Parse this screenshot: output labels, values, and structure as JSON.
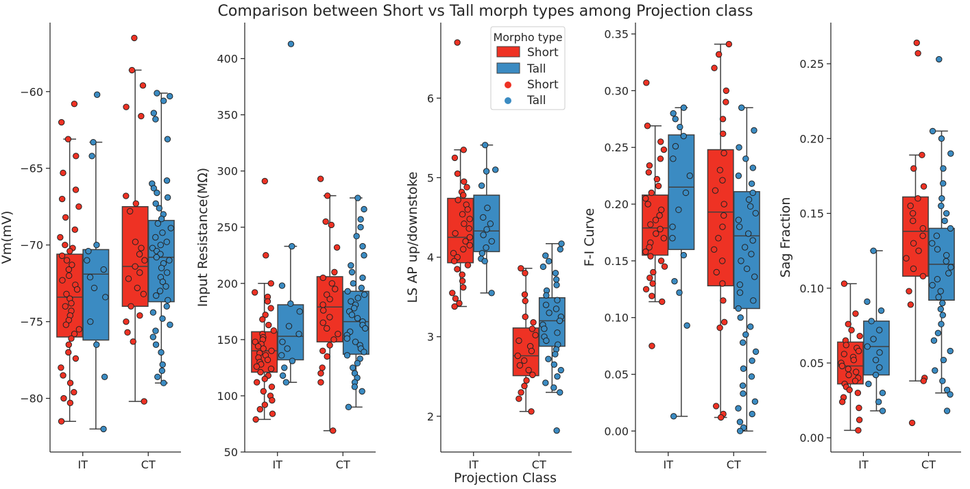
{
  "title": "Comparison between Short vs Tall morph types among Projection class",
  "shared_xlabel": "Projection Class",
  "colors": {
    "Short": "#ee3224",
    "Tall": "#3b8bc2",
    "box_edge": "#3f3f3f",
    "point_edge": "#222222"
  },
  "legend": {
    "title": "Morpho type",
    "box_entries": [
      "Short",
      "Tall"
    ],
    "point_entries": [
      "Short",
      "Tall"
    ],
    "placement": "top-right of third panel"
  },
  "chart_data": [
    {
      "type": "boxplot",
      "ylabel": "Vm(mV)",
      "categories": [
        "IT",
        "CT"
      ],
      "hue": [
        "Short",
        "Tall"
      ],
      "ylim": [
        -83.5,
        -55.5
      ],
      "yticks": [
        -80,
        -75,
        -70,
        -65,
        -60
      ],
      "ytick_labels": [
        "−80",
        "−75",
        "−70",
        "−65",
        "−60"
      ],
      "boxes": [
        {
          "category": "IT",
          "hue": "Short",
          "whislo": -81.5,
          "q1": -76.0,
          "med": -73.4,
          "q3": -70.6,
          "whishi": -63.1
        },
        {
          "category": "IT",
          "hue": "Tall",
          "whislo": -82.0,
          "q1": -76.2,
          "med": -71.9,
          "q3": -70.3,
          "whishi": -63.3
        },
        {
          "category": "CT",
          "hue": "Short",
          "whislo": -80.2,
          "q1": -74.0,
          "med": -71.4,
          "q3": -67.5,
          "whishi": -58.6
        },
        {
          "category": "CT",
          "hue": "Tall",
          "whislo": -79.0,
          "q1": -73.7,
          "med": -70.8,
          "q3": -68.4,
          "whishi": -60.1
        }
      ],
      "points": [
        {
          "category": "IT",
          "hue": "Short",
          "values": [
            -60.8,
            -62.0,
            -63.1,
            -64.2,
            -65.3,
            -66.4,
            -67.0,
            -67.5,
            -68.2,
            -69.0,
            -69.5,
            -70.0,
            -70.2,
            -70.4,
            -70.7,
            -71.0,
            -71.3,
            -71.6,
            -72.0,
            -72.3,
            -72.6,
            -72.9,
            -73.2,
            -73.5,
            -73.8,
            -74.0,
            -74.3,
            -74.6,
            -74.9,
            -75.2,
            -75.5,
            -75.8,
            -76.1,
            -76.5,
            -77.0,
            -77.4,
            -78.0,
            -78.5,
            -79.0,
            -79.6,
            -80.0,
            -80.3,
            -81.5
          ]
        },
        {
          "category": "IT",
          "hue": "Tall",
          "values": [
            -60.2,
            -63.3,
            -64.2,
            -70.0,
            -70.4,
            -71.0,
            -71.6,
            -72.1,
            -72.8,
            -73.4,
            -75.0,
            -76.5,
            -78.6,
            -82.0
          ]
        },
        {
          "category": "CT",
          "hue": "Short",
          "values": [
            -56.5,
            -58.6,
            -59.6,
            -61.0,
            -61.6,
            -66.8,
            -67.3,
            -67.8,
            -69.8,
            -70.2,
            -70.6,
            -71.0,
            -71.4,
            -71.8,
            -72.2,
            -72.8,
            -73.2,
            -74.0,
            -74.6,
            -75.0,
            -75.7,
            -76.3,
            -80.2
          ]
        },
        {
          "category": "CT",
          "hue": "Tall",
          "values": [
            -60.1,
            -60.3,
            -60.6,
            -61.4,
            -61.8,
            -63.1,
            -65.8,
            -66.0,
            -66.3,
            -66.6,
            -66.9,
            -67.3,
            -67.6,
            -68.0,
            -68.3,
            -68.6,
            -68.9,
            -69.2,
            -69.5,
            -69.8,
            -70.0,
            -70.2,
            -70.4,
            -70.6,
            -70.8,
            -71.0,
            -71.2,
            -71.5,
            -71.8,
            -72.1,
            -72.4,
            -72.7,
            -73.0,
            -73.3,
            -73.6,
            -74.0,
            -74.4,
            -74.8,
            -75.2,
            -75.6,
            -76.0,
            -76.5,
            -77.0,
            -77.8,
            -78.2,
            -78.6,
            -79.0
          ]
        }
      ]
    },
    {
      "type": "boxplot",
      "ylabel": "Input Resistance(MΩ)",
      "categories": [
        "IT",
        "CT"
      ],
      "hue": [
        "Short",
        "Tall"
      ],
      "ylim": [
        50,
        432
      ],
      "yticks": [
        50,
        100,
        150,
        200,
        250,
        300,
        350,
        400
      ],
      "ytick_labels": [
        "50",
        "100",
        "150",
        "200",
        "250",
        "300",
        "350",
        "400"
      ],
      "boxes": [
        {
          "category": "IT",
          "hue": "Short",
          "whislo": 79,
          "q1": 121,
          "med": 140,
          "q3": 157,
          "whishi": 200
        },
        {
          "category": "IT",
          "hue": "Tall",
          "whislo": 112,
          "q1": 132,
          "med": 153,
          "q3": 181,
          "whishi": 233
        },
        {
          "category": "CT",
          "hue": "Short",
          "whislo": 69,
          "q1": 148,
          "med": 179,
          "q3": 206,
          "whishi": 278
        },
        {
          "category": "CT",
          "hue": "Tall",
          "whislo": 90,
          "q1": 137,
          "med": 166,
          "q3": 193,
          "whishi": 276
        }
      ],
      "points": [
        {
          "category": "IT",
          "hue": "Short",
          "values": [
            291,
            225,
            200,
            192,
            188,
            184,
            178,
            172,
            168,
            163,
            158,
            155,
            152,
            150,
            148,
            146,
            144,
            142,
            140,
            138,
            136,
            134,
            132,
            130,
            128,
            126,
            124,
            121,
            118,
            115,
            112,
            108,
            104,
            100,
            96,
            92,
            88,
            84,
            79
          ]
        },
        {
          "category": "IT",
          "hue": "Tall",
          "values": [
            413,
            233,
            198,
            182,
            175,
            162,
            155,
            148,
            142,
            136,
            131,
            125,
            118,
            112
          ]
        },
        {
          "category": "CT",
          "hue": "Short",
          "values": [
            293,
            278,
            255,
            252,
            232,
            210,
            205,
            200,
            195,
            190,
            186,
            181,
            176,
            170,
            165,
            160,
            155,
            150,
            145,
            140,
            135,
            125,
            120,
            112,
            69
          ]
        },
        {
          "category": "CT",
          "hue": "Tall",
          "values": [
            276,
            266,
            257,
            250,
            242,
            233,
            225,
            216,
            210,
            205,
            200,
            196,
            193,
            190,
            187,
            184,
            181,
            178,
            175,
            172,
            169,
            166,
            163,
            160,
            157,
            154,
            151,
            148,
            145,
            142,
            139,
            136,
            133,
            129,
            125,
            120,
            116,
            112,
            108,
            104,
            90
          ]
        }
      ]
    },
    {
      "type": "boxplot",
      "ylabel": "LS AP up/downstoke",
      "categories": [
        "IT",
        "CT"
      ],
      "hue": [
        "Short",
        "Tall"
      ],
      "ylim": [
        1.55,
        6.95
      ],
      "yticks": [
        2,
        3,
        4,
        5,
        6
      ],
      "ytick_labels": [
        "2",
        "3",
        "4",
        "5",
        "6"
      ],
      "boxes": [
        {
          "category": "IT",
          "hue": "Short",
          "whislo": 3.38,
          "q1": 3.93,
          "med": 4.25,
          "q3": 4.74,
          "whishi": 5.35
        },
        {
          "category": "IT",
          "hue": "Tall",
          "whislo": 3.55,
          "q1": 4.07,
          "med": 4.33,
          "q3": 4.78,
          "whishi": 5.41
        },
        {
          "category": "CT",
          "hue": "Short",
          "whislo": 2.06,
          "q1": 2.51,
          "med": 2.76,
          "q3": 3.11,
          "whishi": 3.86
        },
        {
          "category": "CT",
          "hue": "Tall",
          "whislo": 2.3,
          "q1": 2.88,
          "med": 3.2,
          "q3": 3.49,
          "whishi": 4.17
        }
      ],
      "points": [
        {
          "category": "IT",
          "hue": "Short",
          "values": [
            6.7,
            5.35,
            5.25,
            5.05,
            4.95,
            4.88,
            4.82,
            4.78,
            4.72,
            4.66,
            4.6,
            4.54,
            4.48,
            4.42,
            4.36,
            4.3,
            4.25,
            4.2,
            4.15,
            4.1,
            4.05,
            4.0,
            3.95,
            3.9,
            3.85,
            3.78,
            3.7,
            3.62,
            3.55,
            3.48,
            3.42,
            3.38
          ]
        },
        {
          "category": "IT",
          "hue": "Tall",
          "values": [
            5.41,
            5.1,
            5.08,
            4.9,
            4.62,
            4.5,
            4.42,
            4.35,
            4.28,
            4.2,
            4.12,
            4.05,
            3.98,
            3.95,
            3.55
          ]
        },
        {
          "category": "CT",
          "hue": "Short",
          "values": [
            3.86,
            3.8,
            3.53,
            3.45,
            3.25,
            3.18,
            3.1,
            3.02,
            2.95,
            2.88,
            2.82,
            2.76,
            2.7,
            2.64,
            2.58,
            2.52,
            2.45,
            2.38,
            2.3,
            2.22,
            2.06
          ]
        },
        {
          "category": "CT",
          "hue": "Tall",
          "values": [
            4.17,
            4.1,
            4.02,
            3.95,
            3.88,
            3.8,
            3.72,
            3.65,
            3.58,
            3.52,
            3.46,
            3.4,
            3.35,
            3.3,
            3.25,
            3.2,
            3.15,
            3.1,
            3.05,
            3.0,
            2.95,
            2.9,
            2.84,
            2.78,
            2.72,
            2.65,
            2.58,
            2.5,
            2.42,
            2.36,
            2.3,
            1.82
          ]
        }
      ]
    },
    {
      "type": "boxplot",
      "ylabel": "F-I Curve",
      "categories": [
        "IT",
        "CT"
      ],
      "hue": [
        "Short",
        "Tall"
      ],
      "ylim": [
        -0.0185,
        0.36
      ],
      "yticks": [
        0.0,
        0.05,
        0.1,
        0.15,
        0.2,
        0.25,
        0.3,
        0.35
      ],
      "ytick_labels": [
        "0.00",
        "0.05",
        "0.10",
        "0.15",
        "0.20",
        "0.25",
        "0.30",
        "0.35"
      ],
      "boxes": [
        {
          "category": "IT",
          "hue": "Short",
          "whislo": 0.114,
          "q1": 0.155,
          "med": 0.179,
          "q3": 0.208,
          "whishi": 0.269
        },
        {
          "category": "IT",
          "hue": "Tall",
          "whislo": 0.013,
          "q1": 0.16,
          "med": 0.215,
          "q3": 0.261,
          "whishi": 0.285
        },
        {
          "category": "CT",
          "hue": "Short",
          "whislo": 0.012,
          "q1": 0.128,
          "med": 0.193,
          "q3": 0.248,
          "whishi": 0.341
        },
        {
          "category": "CT",
          "hue": "Tall",
          "whislo": 0.0,
          "q1": 0.108,
          "med": 0.172,
          "q3": 0.211,
          "whishi": 0.285
        }
      ],
      "points": [
        {
          "category": "IT",
          "hue": "Short",
          "values": [
            0.307,
            0.269,
            0.255,
            0.248,
            0.24,
            0.234,
            0.228,
            0.222,
            0.216,
            0.21,
            0.205,
            0.2,
            0.195,
            0.19,
            0.186,
            0.182,
            0.178,
            0.174,
            0.17,
            0.166,
            0.162,
            0.158,
            0.154,
            0.15,
            0.145,
            0.14,
            0.135,
            0.13,
            0.125,
            0.119,
            0.114,
            0.075
          ]
        },
        {
          "category": "IT",
          "hue": "Tall",
          "values": [
            0.285,
            0.28,
            0.275,
            0.268,
            0.26,
            0.251,
            0.24,
            0.225,
            0.21,
            0.195,
            0.18,
            0.17,
            0.155,
            0.132,
            0.122,
            0.093,
            0.013
          ]
        },
        {
          "category": "CT",
          "hue": "Short",
          "values": [
            0.341,
            0.332,
            0.32,
            0.3,
            0.29,
            0.275,
            0.262,
            0.245,
            0.23,
            0.221,
            0.212,
            0.2,
            0.19,
            0.18,
            0.17,
            0.16,
            0.15,
            0.14,
            0.13,
            0.115,
            0.096,
            0.091,
            0.022,
            0.015,
            0.012
          ]
        },
        {
          "category": "CT",
          "hue": "Tall",
          "values": [
            0.285,
            0.265,
            0.25,
            0.24,
            0.232,
            0.225,
            0.218,
            0.21,
            0.204,
            0.198,
            0.192,
            0.186,
            0.18,
            0.174,
            0.168,
            0.162,
            0.156,
            0.15,
            0.143,
            0.136,
            0.129,
            0.122,
            0.115,
            0.108,
            0.1,
            0.092,
            0.085,
            0.078,
            0.07,
            0.062,
            0.055,
            0.048,
            0.04,
            0.033,
            0.026,
            0.02,
            0.015,
            0.008,
            0.003,
            0.0
          ]
        }
      ]
    },
    {
      "type": "boxplot",
      "ylabel": "Sag Fraction",
      "categories": [
        "IT",
        "CT"
      ],
      "hue": [
        "Short",
        "Tall"
      ],
      "ylim": [
        -0.0095,
        0.2775
      ],
      "yticks": [
        0.0,
        0.05,
        0.1,
        0.15,
        0.2,
        0.25
      ],
      "ytick_labels": [
        "0.00",
        "0.05",
        "0.10",
        "0.15",
        "0.20",
        "0.25"
      ],
      "boxes": [
        {
          "category": "IT",
          "hue": "Short",
          "whislo": 0.005,
          "q1": 0.036,
          "med": 0.048,
          "q3": 0.064,
          "whishi": 0.103
        },
        {
          "category": "IT",
          "hue": "Tall",
          "whislo": 0.018,
          "q1": 0.042,
          "med": 0.061,
          "q3": 0.078,
          "whishi": 0.125
        },
        {
          "category": "CT",
          "hue": "Short",
          "whislo": 0.038,
          "q1": 0.108,
          "med": 0.138,
          "q3": 0.161,
          "whishi": 0.189
        },
        {
          "category": "CT",
          "hue": "Tall",
          "whislo": 0.03,
          "q1": 0.092,
          "med": 0.116,
          "q3": 0.14,
          "whishi": 0.205
        }
      ],
      "points": [
        {
          "category": "IT",
          "hue": "Short",
          "values": [
            0.103,
            0.083,
            0.076,
            0.072,
            0.068,
            0.065,
            0.062,
            0.06,
            0.058,
            0.056,
            0.054,
            0.052,
            0.05,
            0.048,
            0.046,
            0.044,
            0.042,
            0.04,
            0.038,
            0.036,
            0.034,
            0.032,
            0.03,
            0.027,
            0.024,
            0.02,
            0.012,
            0.005
          ]
        },
        {
          "category": "IT",
          "hue": "Tall",
          "values": [
            0.125,
            0.091,
            0.085,
            0.078,
            0.072,
            0.066,
            0.061,
            0.057,
            0.052,
            0.047,
            0.042,
            0.036,
            0.03,
            0.024,
            0.018
          ]
        },
        {
          "category": "CT",
          "hue": "Short",
          "values": [
            0.264,
            0.257,
            0.189,
            0.18,
            0.168,
            0.16,
            0.155,
            0.15,
            0.145,
            0.14,
            0.135,
            0.13,
            0.125,
            0.12,
            0.113,
            0.108,
            0.098,
            0.089,
            0.04,
            0.038,
            0.01
          ]
        },
        {
          "category": "CT",
          "hue": "Tall",
          "values": [
            0.253,
            0.205,
            0.2,
            0.19,
            0.18,
            0.17,
            0.16,
            0.155,
            0.15,
            0.145,
            0.14,
            0.135,
            0.13,
            0.126,
            0.122,
            0.118,
            0.114,
            0.11,
            0.106,
            0.102,
            0.098,
            0.094,
            0.09,
            0.086,
            0.082,
            0.076,
            0.07,
            0.065,
            0.058,
            0.052,
            0.045,
            0.038,
            0.032,
            0.029,
            0.018
          ]
        }
      ]
    }
  ]
}
